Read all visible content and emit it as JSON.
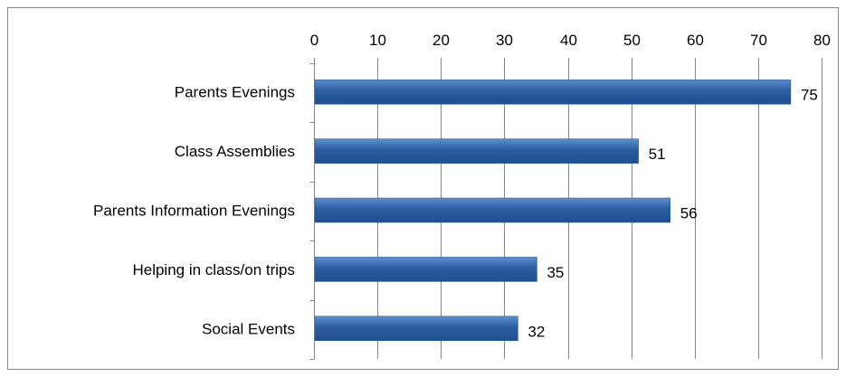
{
  "chart_data": {
    "type": "bar",
    "orientation": "horizontal",
    "categories": [
      "Parents Evenings",
      "Class Assemblies",
      "Parents Information Evenings",
      "Helping in class/on trips",
      "Social Events"
    ],
    "values": [
      75,
      51,
      56,
      35,
      32
    ],
    "data_labels": [
      "75",
      "51",
      "56",
      "35",
      "32"
    ],
    "title": "",
    "xlabel": "",
    "ylabel": "",
    "xlim": [
      0,
      80
    ],
    "x_ticks": [
      "0",
      "10",
      "20",
      "30",
      "40",
      "50",
      "60",
      "70",
      "80"
    ],
    "x_axis_position": "top",
    "grid": true,
    "legend": "none",
    "colors": {
      "bar_light": "#5b8fd4",
      "bar_dark": "#2c5da0",
      "bar_edge": "#1f4f8f",
      "grid": "#868686",
      "frame": "#868686"
    }
  }
}
